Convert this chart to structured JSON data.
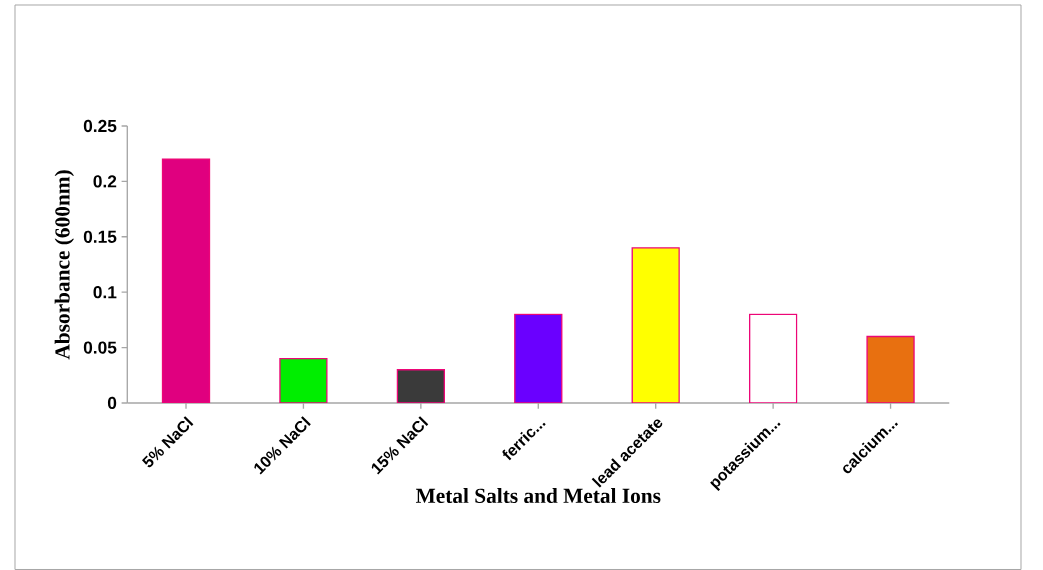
{
  "chart_data": {
    "type": "bar",
    "xlabel": "Metal Salts and Metal Ions",
    "ylabel": "Absorbance (600nm)",
    "categories": [
      "5% NaCl",
      "10% NaCl",
      "15% NaCl",
      "ferric...",
      "lead acetate",
      "potassium...",
      "calcium..."
    ],
    "values": [
      0.22,
      0.04,
      0.03,
      0.08,
      0.14,
      0.08,
      0.06
    ],
    "colors": [
      "#e0007f",
      "#00ee00",
      "#3a3a3a",
      "#6a00ff",
      "#ffff00",
      "#ffffff",
      "#e87010"
    ],
    "ylim": [
      0,
      0.25
    ],
    "yticks": [
      0,
      0.05,
      0.1,
      0.15,
      0.2,
      0.25
    ],
    "grid": false
  }
}
